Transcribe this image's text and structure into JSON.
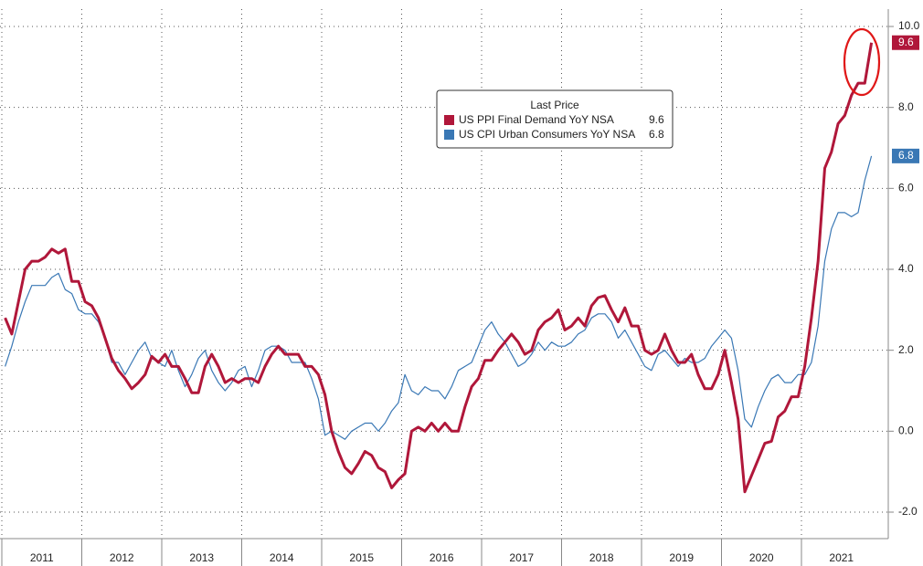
{
  "chart_data": {
    "type": "line",
    "legend_title": "Last Price",
    "categories": [
      null,
      null,
      null,
      null,
      null,
      null,
      "2011",
      null,
      null,
      null,
      null,
      null,
      null,
      null,
      null,
      null,
      null,
      null,
      "2012",
      null,
      null,
      null,
      null,
      null,
      null,
      null,
      null,
      null,
      null,
      null,
      "2013",
      null,
      null,
      null,
      null,
      null,
      null,
      null,
      null,
      null,
      null,
      null,
      "2014",
      null,
      null,
      null,
      null,
      null,
      null,
      null,
      null,
      null,
      null,
      null,
      "2015",
      null,
      null,
      null,
      null,
      null,
      null,
      null,
      null,
      null,
      null,
      null,
      "2016",
      null,
      null,
      null,
      null,
      null,
      null,
      null,
      null,
      null,
      null,
      null,
      "2017",
      null,
      null,
      null,
      null,
      null,
      null,
      null,
      null,
      null,
      null,
      null,
      "2018",
      null,
      null,
      null,
      null,
      null,
      null,
      null,
      null,
      null,
      null,
      null,
      "2019",
      null,
      null,
      null,
      null,
      null,
      null,
      null,
      null,
      null,
      null,
      null,
      "2020",
      null,
      null,
      null,
      null,
      null,
      null,
      null,
      null,
      null,
      null,
      null,
      "2021",
      null,
      null,
      null,
      null
    ],
    "series": [
      {
        "name": "US PPI Final Demand YoY NSA",
        "color": "#b0173a",
        "width": 3,
        "values": [
          2.8,
          2.4,
          3.2,
          4.0,
          4.2,
          4.2,
          4.3,
          4.5,
          4.4,
          4.5,
          3.7,
          3.7,
          3.2,
          3.1,
          2.8,
          2.3,
          1.8,
          1.5,
          1.3,
          1.05,
          1.2,
          1.4,
          1.85,
          1.7,
          1.9,
          1.6,
          1.6,
          1.3,
          0.95,
          0.95,
          1.6,
          1.9,
          1.6,
          1.2,
          1.3,
          1.2,
          1.3,
          1.3,
          1.2,
          1.6,
          1.9,
          2.1,
          1.9,
          1.9,
          1.9,
          1.6,
          1.6,
          1.4,
          0.9,
          0.0,
          -0.5,
          -0.9,
          -1.05,
          -0.8,
          -0.5,
          -0.6,
          -0.9,
          -1.0,
          -1.4,
          -1.2,
          -1.05,
          0.0,
          0.1,
          0.0,
          0.2,
          0.0,
          0.2,
          0.0,
          0.0,
          0.6,
          1.1,
          1.3,
          1.75,
          1.75,
          2.0,
          2.2,
          2.4,
          2.2,
          1.9,
          2.0,
          2.5,
          2.7,
          2.8,
          3.0,
          2.5,
          2.6,
          2.8,
          2.6,
          3.1,
          3.3,
          3.35,
          3.0,
          2.7,
          3.05,
          2.6,
          2.6,
          2.0,
          1.9,
          2.0,
          2.4,
          2.0,
          1.7,
          1.7,
          1.9,
          1.4,
          1.05,
          1.05,
          1.4,
          2.0,
          1.2,
          0.3,
          -1.5,
          -1.1,
          -0.7,
          -0.3,
          -0.25,
          0.35,
          0.5,
          0.85,
          0.85,
          1.6,
          2.8,
          4.2,
          6.5,
          6.9,
          7.6,
          7.8,
          8.3,
          8.6,
          8.6,
          9.6
        ]
      },
      {
        "name": "US CPI Urban Consumers YoY NSA",
        "color": "#3a78b5",
        "width": 1.2,
        "values": [
          1.6,
          2.1,
          2.7,
          3.2,
          3.6,
          3.6,
          3.6,
          3.8,
          3.9,
          3.5,
          3.4,
          3.0,
          2.9,
          2.9,
          2.7,
          2.3,
          1.7,
          1.7,
          1.4,
          1.7,
          2.0,
          2.2,
          1.8,
          1.7,
          1.6,
          2.0,
          1.5,
          1.1,
          1.4,
          1.8,
          2.0,
          1.5,
          1.2,
          1.0,
          1.2,
          1.5,
          1.6,
          1.1,
          1.5,
          2.0,
          2.1,
          2.1,
          2.0,
          1.7,
          1.7,
          1.7,
          1.3,
          0.8,
          -0.1,
          0.0,
          -0.1,
          -0.2,
          0.0,
          0.1,
          0.2,
          0.2,
          0.0,
          0.2,
          0.5,
          0.7,
          1.4,
          1.0,
          0.9,
          1.1,
          1.0,
          1.0,
          0.8,
          1.1,
          1.5,
          1.6,
          1.7,
          2.1,
          2.5,
          2.7,
          2.4,
          2.2,
          1.9,
          1.6,
          1.7,
          1.9,
          2.2,
          2.0,
          2.2,
          2.1,
          2.1,
          2.2,
          2.4,
          2.5,
          2.8,
          2.9,
          2.9,
          2.7,
          2.3,
          2.5,
          2.2,
          1.9,
          1.6,
          1.5,
          1.9,
          2.0,
          1.8,
          1.6,
          1.8,
          1.7,
          1.7,
          1.8,
          2.1,
          2.3,
          2.5,
          2.3,
          1.5,
          0.3,
          0.1,
          0.6,
          1.0,
          1.3,
          1.4,
          1.2,
          1.2,
          1.4,
          1.4,
          1.7,
          2.6,
          4.2,
          5.0,
          5.4,
          5.4,
          5.3,
          5.4,
          6.2,
          6.8
        ]
      }
    ],
    "ylim": [
      -2.5,
      10.4
    ],
    "yticks": [
      {
        "value": -2,
        "label": "-2.0"
      },
      {
        "value": 0,
        "label": "0.0"
      },
      {
        "value": 2,
        "label": "2.0"
      },
      {
        "value": 4,
        "label": "4.0"
      },
      {
        "value": 6,
        "label": "6.0"
      },
      {
        "value": 8,
        "label": "8.0"
      },
      {
        "value": 10,
        "label": "10.0"
      }
    ],
    "grid": true
  }
}
